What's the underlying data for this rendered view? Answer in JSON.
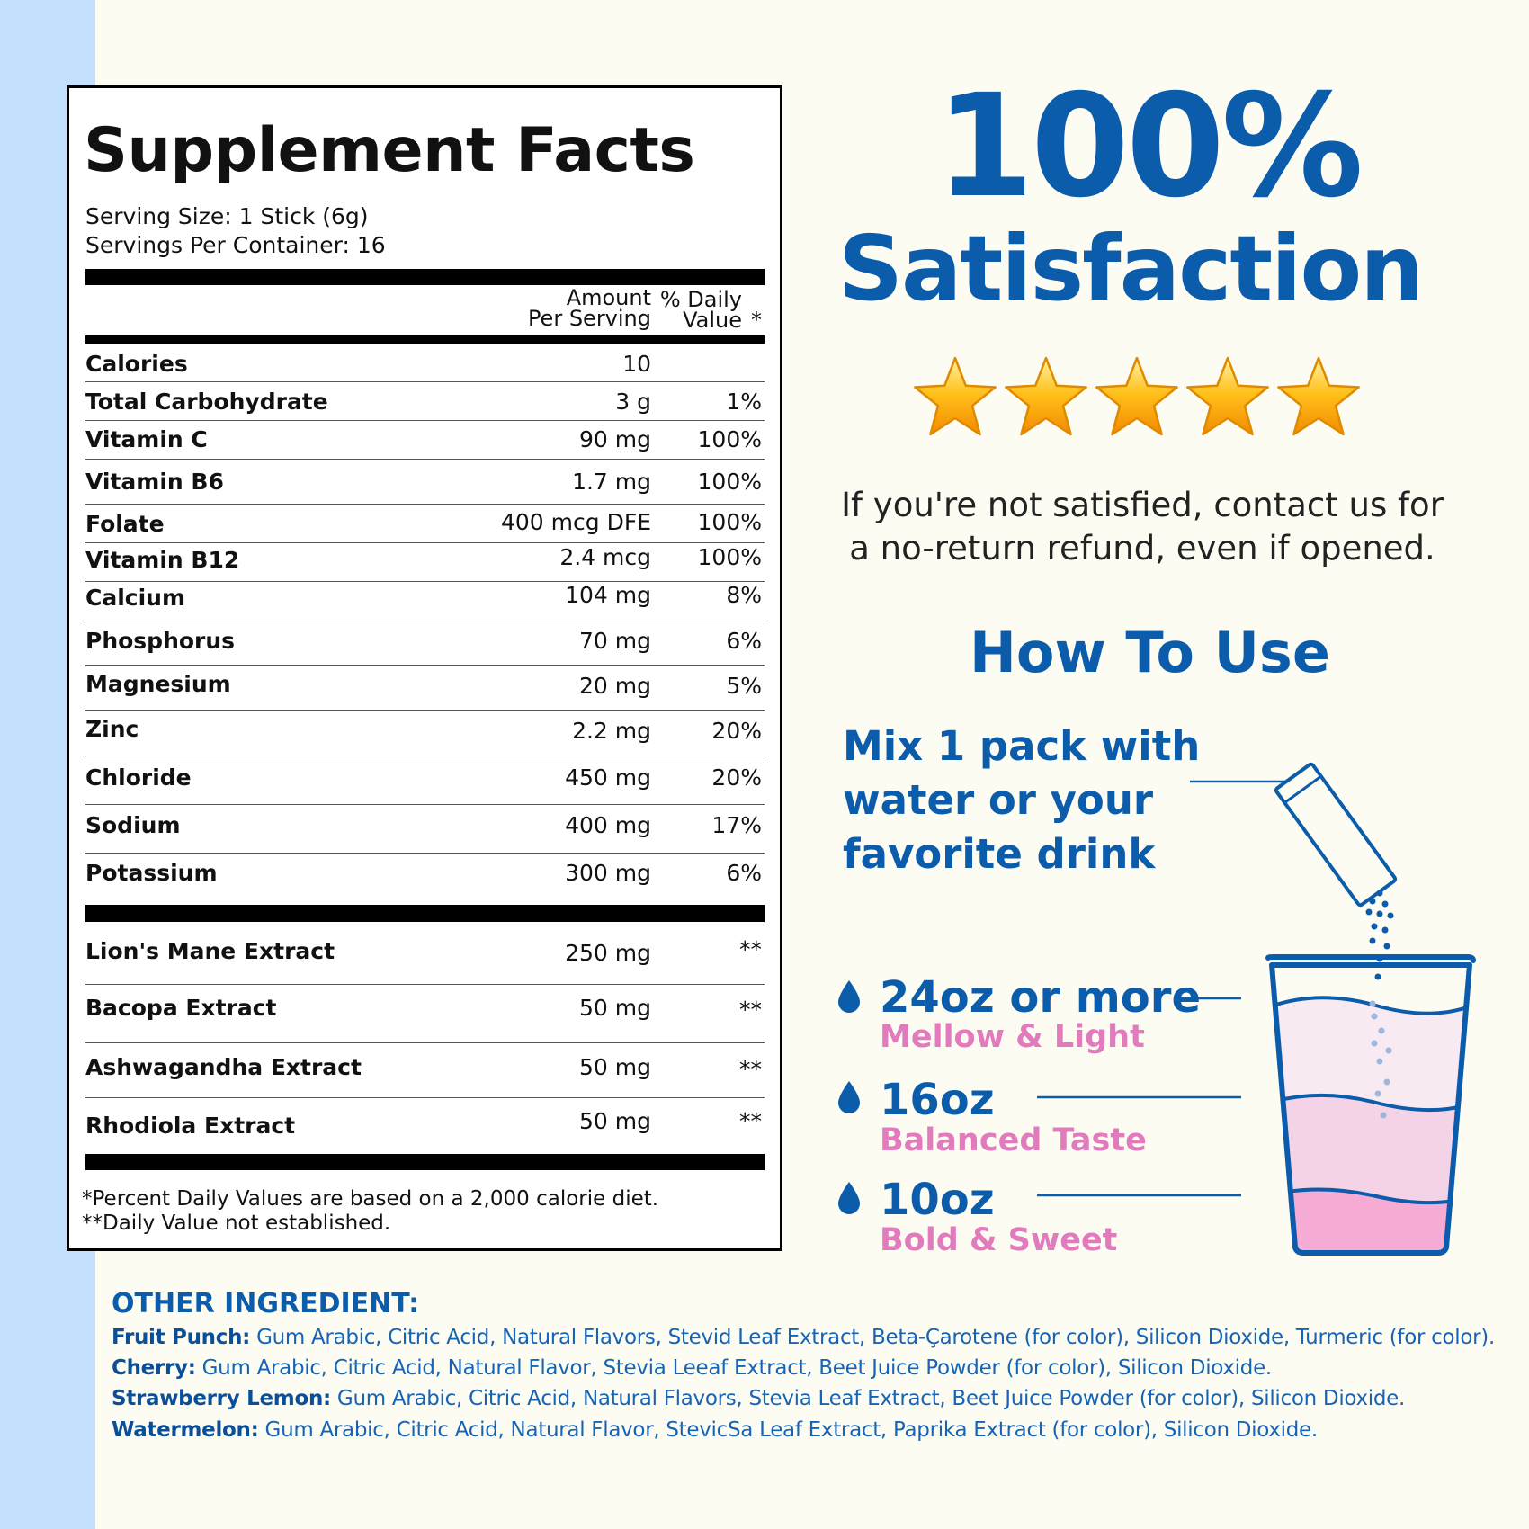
{
  "facts": {
    "title": "Supplement Facts",
    "serving_size": "Serving Size: 1 Stick (6g)",
    "servings_per_container": "Servings Per Container: 16",
    "header_amount_1": "Amount",
    "header_amount_2": "Per Serving",
    "header_dv_1": "% Daily",
    "header_dv_2": "Value",
    "header_star": "*",
    "rows": [
      {
        "name": "Calories",
        "amount": "10",
        "dv": ""
      },
      {
        "name": "Total Carbohydrate",
        "amount": "3 g",
        "dv": "1%"
      },
      {
        "name": "Vitamin C",
        "amount": "90 mg",
        "dv": "100%"
      },
      {
        "name": "Vitamin B6",
        "amount": "1.7 mg",
        "dv": "100%"
      },
      {
        "name": "Folate",
        "amount": "400 mcg DFE",
        "dv": "100%"
      },
      {
        "name": "Vitamin B12",
        "amount": "2.4 mcg",
        "dv": "100%"
      },
      {
        "name": "Calcium",
        "amount": "104 mg",
        "dv": "8%"
      },
      {
        "name": "Phosphorus",
        "amount": "70 mg",
        "dv": "6%"
      },
      {
        "name": "Magnesium",
        "amount": "20 mg",
        "dv": "5%"
      },
      {
        "name": "Zinc",
        "amount": "2.2 mg",
        "dv": "20%"
      },
      {
        "name": "Chloride",
        "amount": "450 mg",
        "dv": "20%"
      },
      {
        "name": "Sodium",
        "amount": "400 mg",
        "dv": "17%"
      },
      {
        "name": "Potassium",
        "amount": "300 mg",
        "dv": "6%"
      }
    ],
    "extracts": [
      {
        "name": "Lion's Mane Extract",
        "amount": "250 mg",
        "dv": "**"
      },
      {
        "name": "Bacopa Extract",
        "amount": "50 mg",
        "dv": "**"
      },
      {
        "name": "Ashwagandha Extract",
        "amount": "50 mg",
        "dv": "**"
      },
      {
        "name": "Rhodiola Extract",
        "amount": "50 mg",
        "dv": "**"
      }
    ],
    "footnote_1": "*Percent Daily Values are based on a 2,000 calorie diet.",
    "footnote_2": "**Daily Value not established."
  },
  "promo": {
    "headline_1": "100%",
    "headline_2": "Satisfaction",
    "rating": 5,
    "guarantee_1": "If you're not satisfied, contact us for",
    "guarantee_2": "a no-return refund, even if opened."
  },
  "how_to": {
    "title": "How To Use",
    "mix_1": "Mix 1 pack with",
    "mix_2": "water or your",
    "mix_3": "favorite drink",
    "options": [
      {
        "size": "24oz or more",
        "taste": "Mellow & Light"
      },
      {
        "size": "16oz",
        "taste": "Balanced Taste"
      },
      {
        "size": "10oz",
        "taste": "Bold & Sweet"
      }
    ]
  },
  "other_ingredients": {
    "title": "OTHER INGREDIENT:",
    "flavors": [
      {
        "name": "Fruit Punch:",
        "text": " Gum Arabic, Citric Acid, Natural Flavors, Stevid Leaf Extract, Beta-Çarotene (for color), Silicon Dioxide, Turmeric (for color)."
      },
      {
        "name": "Cherry:",
        "text": " Gum Arabic, Citric Acid, Natural Flavor, Stevia Leeaf Extract, Beet Juice Powder (for color), Silicon Dioxide."
      },
      {
        "name": "Strawberry Lemon:",
        "text": " Gum Arabic, Citric Acid, Natural Flavors, Stevia Leaf Extract, Beet Juice Powder (for color), Silicon Dioxide."
      },
      {
        "name": "Watermelon:",
        "text": " Gum Arabic, Citric Acid, Natural Flavor, StevicSa Leaf Extract, Paprika Extract (for color), Silicon Dioxide."
      }
    ]
  },
  "colors": {
    "brand_blue": "#0b5cab",
    "taste_pink": "#e27bbd",
    "side_strip": "#c3e1fc",
    "star_gold": "#ffb21a"
  }
}
